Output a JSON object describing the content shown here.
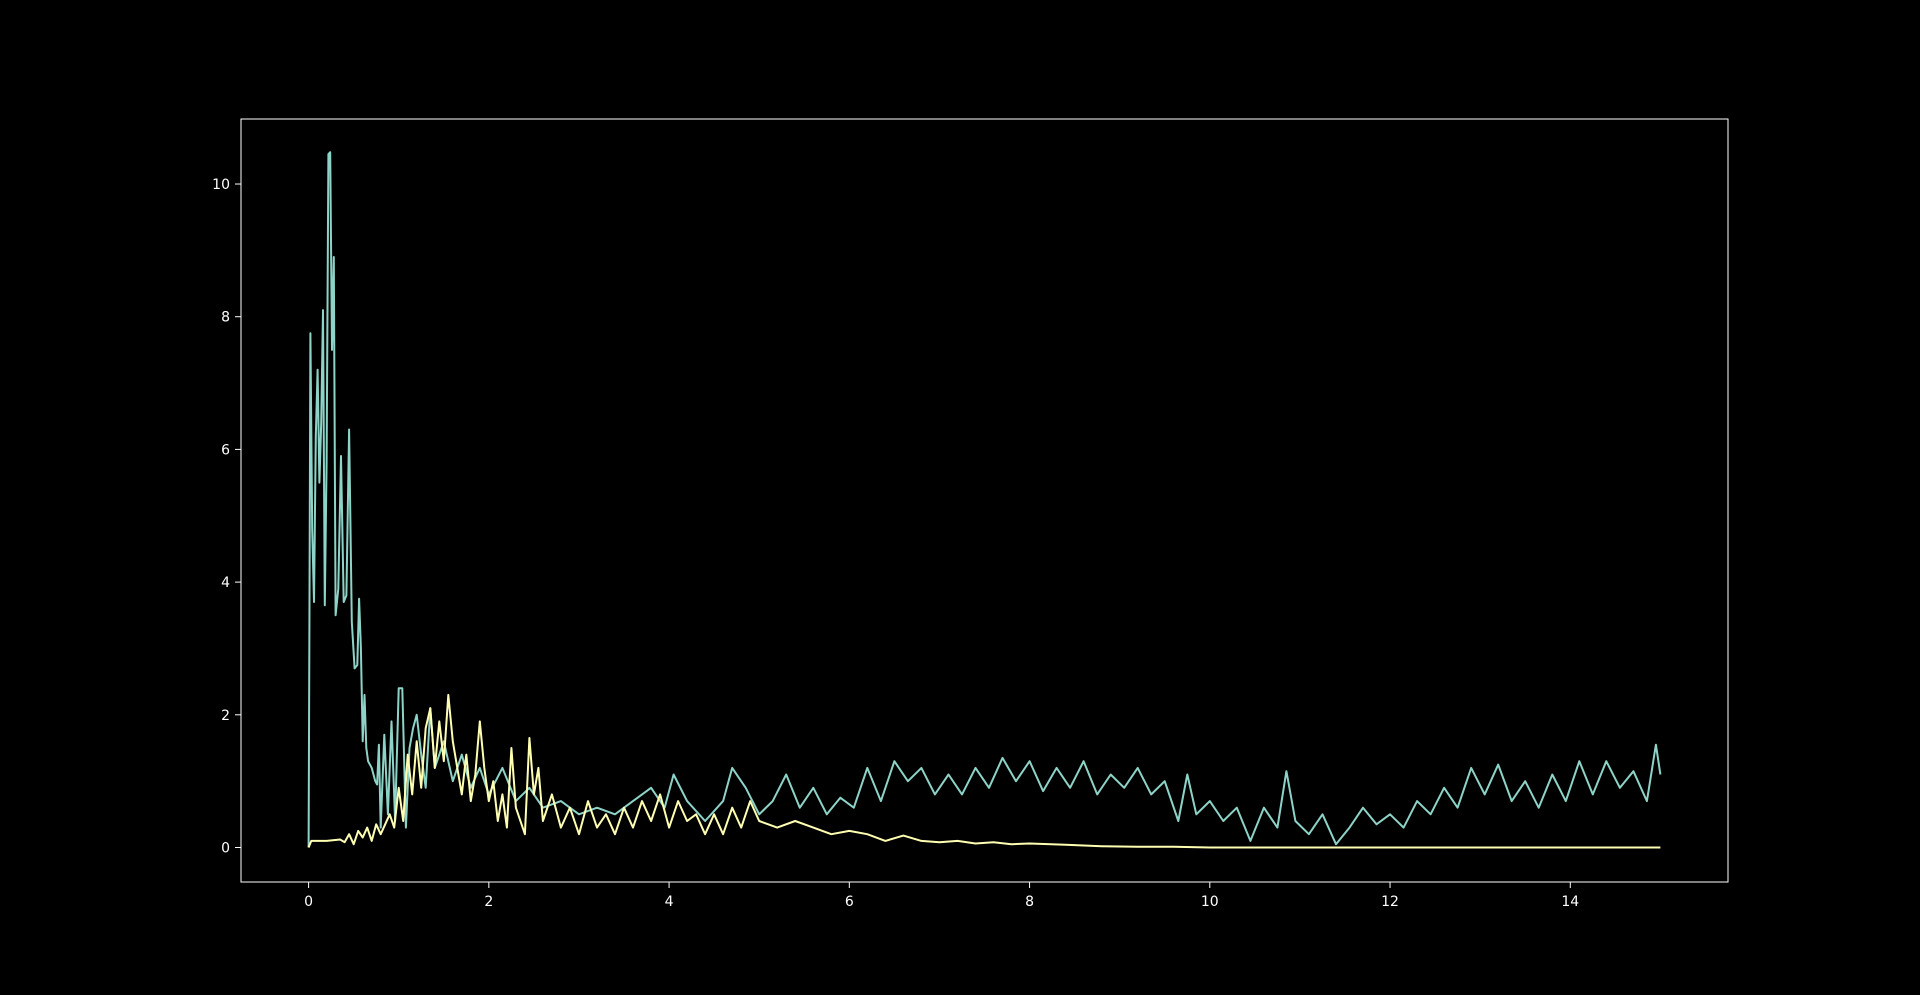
{
  "chart_data": {
    "type": "line",
    "title": "",
    "xlabel": "",
    "ylabel": "",
    "xlim": [
      -0.75,
      15.75
    ],
    "ylim": [
      -0.52,
      10.98
    ],
    "xticks": [
      0,
      2,
      4,
      6,
      8,
      10,
      12,
      14
    ],
    "yticks": [
      0,
      2,
      4,
      6,
      8,
      10
    ],
    "grid": false,
    "legend": "none",
    "background": "#000000",
    "axis_color": "#ffffff",
    "series": [
      {
        "color": "#8dd3c7",
        "points": [
          [
            0.0,
            0.0
          ],
          [
            0.01,
            3.7
          ],
          [
            0.02,
            7.75
          ],
          [
            0.04,
            4.8
          ],
          [
            0.06,
            3.7
          ],
          [
            0.08,
            6.2
          ],
          [
            0.1,
            7.2
          ],
          [
            0.12,
            5.5
          ],
          [
            0.14,
            6.4
          ],
          [
            0.16,
            8.1
          ],
          [
            0.18,
            3.65
          ],
          [
            0.2,
            5.8
          ],
          [
            0.22,
            10.45
          ],
          [
            0.24,
            10.48
          ],
          [
            0.26,
            7.5
          ],
          [
            0.28,
            8.9
          ],
          [
            0.3,
            3.5
          ],
          [
            0.33,
            3.9
          ],
          [
            0.36,
            5.9
          ],
          [
            0.39,
            3.7
          ],
          [
            0.42,
            3.8
          ],
          [
            0.45,
            6.3
          ],
          [
            0.48,
            3.4
          ],
          [
            0.51,
            2.7
          ],
          [
            0.54,
            2.75
          ],
          [
            0.56,
            3.75
          ],
          [
            0.58,
            3.0
          ],
          [
            0.6,
            1.6
          ],
          [
            0.62,
            2.3
          ],
          [
            0.64,
            1.5
          ],
          [
            0.66,
            1.3
          ],
          [
            0.7,
            1.2
          ],
          [
            0.74,
            1.0
          ],
          [
            0.76,
            0.95
          ],
          [
            0.78,
            1.55
          ],
          [
            0.8,
            0.3
          ],
          [
            0.84,
            1.7
          ],
          [
            0.88,
            0.5
          ],
          [
            0.92,
            1.9
          ],
          [
            0.96,
            0.4
          ],
          [
            1.0,
            2.4
          ],
          [
            1.04,
            2.4
          ],
          [
            1.08,
            0.3
          ],
          [
            1.12,
            1.5
          ],
          [
            1.16,
            1.8
          ],
          [
            1.2,
            2.0
          ],
          [
            1.25,
            1.4
          ],
          [
            1.3,
            0.9
          ],
          [
            1.35,
            2.1
          ],
          [
            1.4,
            1.2
          ],
          [
            1.5,
            1.6
          ],
          [
            1.6,
            1.0
          ],
          [
            1.7,
            1.4
          ],
          [
            1.8,
            0.9
          ],
          [
            1.9,
            1.2
          ],
          [
            2.0,
            0.8
          ],
          [
            2.15,
            1.2
          ],
          [
            2.3,
            0.7
          ],
          [
            2.45,
            0.9
          ],
          [
            2.6,
            0.6
          ],
          [
            2.8,
            0.7
          ],
          [
            3.0,
            0.5
          ],
          [
            3.2,
            0.6
          ],
          [
            3.4,
            0.5
          ],
          [
            3.6,
            0.7
          ],
          [
            3.8,
            0.9
          ],
          [
            3.95,
            0.6
          ],
          [
            4.05,
            1.1
          ],
          [
            4.2,
            0.7
          ],
          [
            4.4,
            0.4
          ],
          [
            4.6,
            0.7
          ],
          [
            4.7,
            1.2
          ],
          [
            4.85,
            0.9
          ],
          [
            5.0,
            0.5
          ],
          [
            5.15,
            0.7
          ],
          [
            5.3,
            1.1
          ],
          [
            5.45,
            0.6
          ],
          [
            5.6,
            0.9
          ],
          [
            5.75,
            0.5
          ],
          [
            5.9,
            0.75
          ],
          [
            6.05,
            0.6
          ],
          [
            6.2,
            1.2
          ],
          [
            6.35,
            0.7
          ],
          [
            6.5,
            1.3
          ],
          [
            6.65,
            1.0
          ],
          [
            6.8,
            1.2
          ],
          [
            6.95,
            0.8
          ],
          [
            7.1,
            1.1
          ],
          [
            7.25,
            0.8
          ],
          [
            7.4,
            1.2
          ],
          [
            7.55,
            0.9
          ],
          [
            7.7,
            1.35
          ],
          [
            7.85,
            1.0
          ],
          [
            8.0,
            1.3
          ],
          [
            8.15,
            0.85
          ],
          [
            8.3,
            1.2
          ],
          [
            8.45,
            0.9
          ],
          [
            8.6,
            1.3
          ],
          [
            8.75,
            0.8
          ],
          [
            8.9,
            1.1
          ],
          [
            9.05,
            0.9
          ],
          [
            9.2,
            1.2
          ],
          [
            9.35,
            0.8
          ],
          [
            9.5,
            1.0
          ],
          [
            9.65,
            0.4
          ],
          [
            9.75,
            1.1
          ],
          [
            9.85,
            0.5
          ],
          [
            10.0,
            0.7
          ],
          [
            10.15,
            0.4
          ],
          [
            10.3,
            0.6
          ],
          [
            10.45,
            0.1
          ],
          [
            10.6,
            0.6
          ],
          [
            10.75,
            0.3
          ],
          [
            10.85,
            1.15
          ],
          [
            10.95,
            0.4
          ],
          [
            11.1,
            0.2
          ],
          [
            11.25,
            0.5
          ],
          [
            11.4,
            0.05
          ],
          [
            11.55,
            0.3
          ],
          [
            11.7,
            0.6
          ],
          [
            11.85,
            0.35
          ],
          [
            12.0,
            0.5
          ],
          [
            12.15,
            0.3
          ],
          [
            12.3,
            0.7
          ],
          [
            12.45,
            0.5
          ],
          [
            12.6,
            0.9
          ],
          [
            12.75,
            0.6
          ],
          [
            12.9,
            1.2
          ],
          [
            13.05,
            0.8
          ],
          [
            13.2,
            1.25
          ],
          [
            13.35,
            0.7
          ],
          [
            13.5,
            1.0
          ],
          [
            13.65,
            0.6
          ],
          [
            13.8,
            1.1
          ],
          [
            13.95,
            0.7
          ],
          [
            14.1,
            1.3
          ],
          [
            14.25,
            0.8
          ],
          [
            14.4,
            1.3
          ],
          [
            14.55,
            0.9
          ],
          [
            14.7,
            1.15
          ],
          [
            14.85,
            0.7
          ],
          [
            14.95,
            1.55
          ],
          [
            15.0,
            1.1
          ]
        ]
      },
      {
        "color": "#ffffb3",
        "points": [
          [
            0.0,
            0.0
          ],
          [
            0.03,
            0.1
          ],
          [
            0.2,
            0.1
          ],
          [
            0.35,
            0.12
          ],
          [
            0.4,
            0.08
          ],
          [
            0.45,
            0.2
          ],
          [
            0.5,
            0.05
          ],
          [
            0.55,
            0.25
          ],
          [
            0.6,
            0.15
          ],
          [
            0.65,
            0.3
          ],
          [
            0.7,
            0.1
          ],
          [
            0.75,
            0.35
          ],
          [
            0.8,
            0.2
          ],
          [
            0.9,
            0.5
          ],
          [
            0.95,
            0.3
          ],
          [
            1.0,
            0.9
          ],
          [
            1.05,
            0.4
          ],
          [
            1.1,
            1.4
          ],
          [
            1.15,
            0.8
          ],
          [
            1.2,
            1.6
          ],
          [
            1.25,
            0.9
          ],
          [
            1.3,
            1.8
          ],
          [
            1.35,
            2.1
          ],
          [
            1.4,
            1.2
          ],
          [
            1.45,
            1.9
          ],
          [
            1.5,
            1.3
          ],
          [
            1.55,
            2.3
          ],
          [
            1.6,
            1.6
          ],
          [
            1.65,
            1.2
          ],
          [
            1.7,
            0.8
          ],
          [
            1.75,
            1.4
          ],
          [
            1.8,
            0.7
          ],
          [
            1.85,
            1.1
          ],
          [
            1.9,
            1.9
          ],
          [
            1.95,
            1.2
          ],
          [
            2.0,
            0.7
          ],
          [
            2.05,
            1.0
          ],
          [
            2.1,
            0.4
          ],
          [
            2.15,
            0.8
          ],
          [
            2.2,
            0.3
          ],
          [
            2.25,
            1.5
          ],
          [
            2.3,
            0.6
          ],
          [
            2.4,
            0.2
          ],
          [
            2.45,
            1.65
          ],
          [
            2.5,
            0.8
          ],
          [
            2.55,
            1.2
          ],
          [
            2.6,
            0.4
          ],
          [
            2.7,
            0.8
          ],
          [
            2.8,
            0.3
          ],
          [
            2.9,
            0.6
          ],
          [
            3.0,
            0.2
          ],
          [
            3.1,
            0.7
          ],
          [
            3.2,
            0.3
          ],
          [
            3.3,
            0.5
          ],
          [
            3.4,
            0.2
          ],
          [
            3.5,
            0.6
          ],
          [
            3.6,
            0.3
          ],
          [
            3.7,
            0.7
          ],
          [
            3.8,
            0.4
          ],
          [
            3.9,
            0.8
          ],
          [
            4.0,
            0.3
          ],
          [
            4.1,
            0.7
          ],
          [
            4.2,
            0.4
          ],
          [
            4.3,
            0.5
          ],
          [
            4.4,
            0.2
          ],
          [
            4.5,
            0.5
          ],
          [
            4.6,
            0.2
          ],
          [
            4.7,
            0.6
          ],
          [
            4.8,
            0.3
          ],
          [
            4.9,
            0.7
          ],
          [
            5.0,
            0.4
          ],
          [
            5.2,
            0.3
          ],
          [
            5.4,
            0.4
          ],
          [
            5.6,
            0.3
          ],
          [
            5.8,
            0.2
          ],
          [
            6.0,
            0.25
          ],
          [
            6.2,
            0.2
          ],
          [
            6.4,
            0.1
          ],
          [
            6.6,
            0.18
          ],
          [
            6.8,
            0.1
          ],
          [
            7.0,
            0.08
          ],
          [
            7.2,
            0.1
          ],
          [
            7.4,
            0.06
          ],
          [
            7.6,
            0.08
          ],
          [
            7.8,
            0.05
          ],
          [
            8.0,
            0.06
          ],
          [
            8.4,
            0.04
          ],
          [
            8.8,
            0.02
          ],
          [
            9.2,
            0.01
          ],
          [
            9.6,
            0.01
          ],
          [
            10.0,
            0.0
          ],
          [
            11.0,
            0.0
          ],
          [
            12.0,
            0.0
          ],
          [
            13.0,
            0.0
          ],
          [
            14.0,
            0.0
          ],
          [
            15.0,
            0.0
          ]
        ]
      }
    ]
  }
}
